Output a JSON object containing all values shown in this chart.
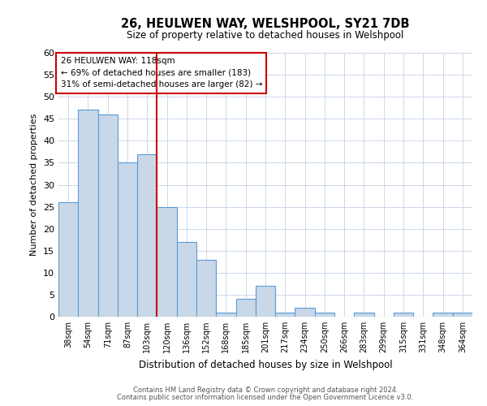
{
  "title": "26, HEULWEN WAY, WELSHPOOL, SY21 7DB",
  "subtitle": "Size of property relative to detached houses in Welshpool",
  "xlabel": "Distribution of detached houses by size in Welshpool",
  "ylabel": "Number of detached properties",
  "bar_labels": [
    "38sqm",
    "54sqm",
    "71sqm",
    "87sqm",
    "103sqm",
    "120sqm",
    "136sqm",
    "152sqm",
    "168sqm",
    "185sqm",
    "201sqm",
    "217sqm",
    "234sqm",
    "250sqm",
    "266sqm",
    "283sqm",
    "299sqm",
    "315sqm",
    "331sqm",
    "348sqm",
    "364sqm"
  ],
  "bar_values": [
    26,
    47,
    46,
    35,
    37,
    25,
    17,
    13,
    1,
    4,
    7,
    1,
    2,
    1,
    0,
    1,
    0,
    1,
    0,
    1,
    1
  ],
  "bar_color": "#c8d8e8",
  "bar_edge_color": "#5b9bd5",
  "vline_color": "#cc0000",
  "annotation_box_text": "26 HEULWEN WAY: 118sqm\n← 69% of detached houses are smaller (183)\n31% of semi-detached houses are larger (82) →",
  "ylim": [
    0,
    60
  ],
  "yticks": [
    0,
    5,
    10,
    15,
    20,
    25,
    30,
    35,
    40,
    45,
    50,
    55,
    60
  ],
  "footer_line1": "Contains HM Land Registry data © Crown copyright and database right 2024.",
  "footer_line2": "Contains public sector information licensed under the Open Government Licence v3.0.",
  "background_color": "#ffffff",
  "grid_color": "#ccd8e8"
}
